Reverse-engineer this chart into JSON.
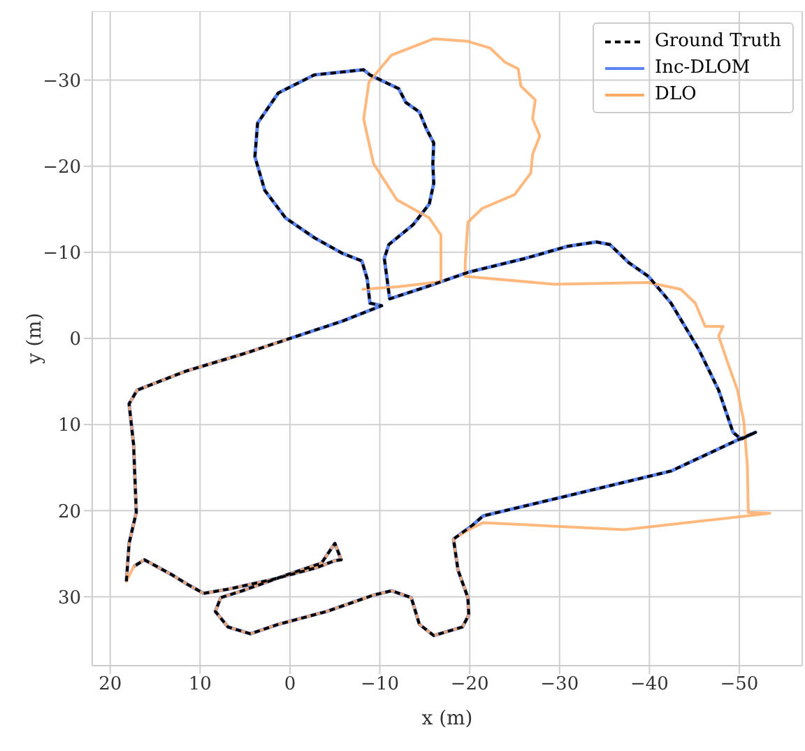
{
  "chart_data": {
    "type": "line",
    "xlabel": "x (m)",
    "ylabel": "y (m)",
    "xlim": [
      22,
      -57
    ],
    "ylim": [
      38,
      -38
    ],
    "xticks": [
      20,
      10,
      0,
      -10,
      -20,
      -30,
      -40,
      -50
    ],
    "yticks": [
      30,
      20,
      10,
      0,
      -10,
      -20,
      -30
    ],
    "grid": true,
    "legend": "top right",
    "marker": "none",
    "series": [
      {
        "name": "Ground Truth",
        "color": "#000000",
        "line_style": "dashed",
        "x": [
          18.2,
          17.9,
          17.1,
          17.4,
          17.9,
          17.0,
          11.6,
          4.9,
          0,
          -5.8,
          -10.2,
          -8.9,
          -8.6,
          -8.0,
          -5.8,
          -2.7,
          0.5,
          2.8,
          3.9,
          3.6,
          1.3,
          -2.7,
          -8.2,
          -8.9,
          -10.5,
          -12.1,
          -12.9,
          -14.4,
          -15.2,
          -16.0,
          -15.9,
          -16.0,
          -15.5,
          -13.7,
          -11.0,
          -10.5,
          -11.1,
          -15.2,
          -19.9,
          -26.2,
          -30.9,
          -34.1,
          -35.6,
          -37.7,
          -39.9,
          -42.4,
          -45.5,
          -47.7,
          -49.3,
          -50.2,
          -51.8,
          -49.8,
          -42.4,
          -32.0,
          -21.5,
          -20.3,
          -18.2,
          -18.7,
          -19.8,
          -19.9,
          -19.2,
          -16.0,
          -14.4,
          -13.5,
          -11.3,
          -9.3,
          -4.1,
          1.3,
          4.4,
          6.9,
          8.3,
          7.7,
          5.3,
          0.2,
          -3.5,
          -5.0,
          -5.7,
          -5.0,
          -3.0,
          2.0,
          6.8,
          9.6,
          11.5,
          13.2,
          16.2,
          17.4
        ],
        "values": [
          28.2,
          23.8,
          20.2,
          12.3,
          7.6,
          6.0,
          3.8,
          1.7,
          0,
          -2.0,
          -3.8,
          -4.1,
          -6.9,
          -9.0,
          -9.9,
          -11.7,
          -14.0,
          -17.2,
          -21.1,
          -25.0,
          -28.5,
          -30.6,
          -31.2,
          -30.6,
          -29.8,
          -29.0,
          -27.4,
          -26.3,
          -24.3,
          -22.7,
          -20.3,
          -18.0,
          -15.6,
          -13.2,
          -10.9,
          -9.3,
          -4.6,
          -6.0,
          -7.7,
          -9.3,
          -10.7,
          -11.2,
          -10.9,
          -8.8,
          -7.2,
          -4.1,
          1.3,
          6.0,
          10.9,
          11.7,
          10.9,
          11.8,
          15.4,
          18.0,
          20.6,
          21.7,
          23.3,
          26.9,
          30.1,
          32.1,
          33.5,
          34.5,
          33.2,
          30.1,
          29.3,
          29.8,
          31.7,
          33.2,
          34.3,
          33.5,
          31.7,
          30.1,
          29.3,
          27.4,
          26.1,
          23.8,
          25.7,
          25.8,
          26.6,
          28.0,
          29.1,
          29.6,
          28.5,
          27.4,
          25.7,
          26.5
        ]
      },
      {
        "name": "Inc-DLOM",
        "color": "#5b84f0",
        "line_style": "solid",
        "x": [
          18.2,
          17.9,
          17.1,
          17.4,
          17.9,
          17.0,
          11.6,
          4.9,
          0,
          -5.8,
          -10.2,
          -8.9,
          -8.6,
          -8.0,
          -5.8,
          -2.7,
          0.5,
          2.8,
          3.9,
          3.6,
          1.3,
          -2.7,
          -8.2,
          -8.9,
          -10.5,
          -12.1,
          -12.9,
          -14.4,
          -15.2,
          -16.0,
          -15.9,
          -16.0,
          -15.5,
          -13.7,
          -11.0,
          -10.5,
          -11.1,
          -15.2,
          -19.9,
          -26.2,
          -30.9,
          -34.1,
          -35.6,
          -37.7,
          -39.9,
          -42.4,
          -45.5,
          -47.7,
          -49.3,
          -50.2,
          -51.8,
          -49.8,
          -42.4,
          -32.0,
          -21.5,
          -20.3,
          -18.2,
          -18.7,
          -19.8,
          -19.9,
          -19.2,
          -16.0,
          -14.4,
          -13.5,
          -11.3,
          -9.3,
          -4.1,
          1.3,
          4.4,
          6.9,
          8.3,
          7.7,
          5.3,
          0.2,
          -3.5,
          -5.0,
          -5.7,
          -5.0,
          -3.0,
          2.0,
          6.8,
          9.6,
          11.5,
          13.2,
          16.2,
          17.4
        ],
        "values": [
          28.2,
          23.8,
          20.2,
          12.3,
          7.6,
          6.0,
          3.8,
          1.7,
          0,
          -2.0,
          -3.8,
          -4.1,
          -6.9,
          -9.0,
          -9.9,
          -11.7,
          -14.0,
          -17.2,
          -21.1,
          -25.0,
          -28.5,
          -30.6,
          -31.2,
          -30.6,
          -29.8,
          -29.0,
          -27.4,
          -26.3,
          -24.3,
          -22.7,
          -20.3,
          -18.0,
          -15.6,
          -13.2,
          -10.9,
          -9.3,
          -4.6,
          -6.0,
          -7.7,
          -9.3,
          -10.7,
          -11.2,
          -10.9,
          -8.8,
          -7.2,
          -4.1,
          1.3,
          6.0,
          10.9,
          11.7,
          10.9,
          11.8,
          15.4,
          18.0,
          20.6,
          21.7,
          23.3,
          26.9,
          30.1,
          32.1,
          33.5,
          34.5,
          33.2,
          30.1,
          29.3,
          29.8,
          31.7,
          33.2,
          34.3,
          33.5,
          31.7,
          30.1,
          29.3,
          27.4,
          26.1,
          23.8,
          25.7,
          25.8,
          26.6,
          28.0,
          29.1,
          29.6,
          28.5,
          27.4,
          25.7,
          26.5
        ]
      },
      {
        "name": "DLO",
        "color": "#ffab66",
        "line_style": "solid",
        "x": [
          -8.0,
          -12.1,
          -16.8,
          -16.8,
          -15.5,
          -11.9,
          -9.3,
          -8.2,
          -8.8,
          -11.3,
          -16.0,
          -19.8,
          -22.3,
          -23.9,
          -25.4,
          -25.7,
          -27.3,
          -27.0,
          -27.8,
          -27.0,
          -26.8,
          -25.0,
          -21.4,
          -19.8,
          -19.5,
          -19.5,
          -29.4,
          -39.9,
          -43.5,
          -45.1,
          -46.2,
          -48.2,
          -47.7,
          -48.7,
          -49.8,
          -50.5,
          -50.9,
          -51.0,
          -53.4,
          -50.9,
          -37.2,
          -21.5,
          -19.9,
          -18.2,
          -18.7,
          -19.8,
          -19.9,
          -19.2,
          -16.0,
          -14.4,
          -13.5,
          -11.3,
          -9.3,
          -4.1,
          1.3,
          4.4,
          6.9,
          8.3,
          7.7,
          5.3,
          0.2,
          -3.5,
          -5.0,
          -5.7,
          -5.0,
          -3.0,
          2.0,
          6.8,
          9.6,
          11.5,
          13.2,
          16.2,
          17.4,
          18.2,
          17.9,
          17.1,
          17.4,
          17.9,
          17.0,
          11.6,
          4.9,
          0
        ],
        "values": [
          -5.7,
          -6.0,
          -6.6,
          -12.0,
          -14.0,
          -16.1,
          -20.3,
          -25.5,
          -29.8,
          -32.9,
          -34.8,
          -34.5,
          -33.7,
          -32.1,
          -31.3,
          -29.3,
          -27.7,
          -25.5,
          -23.5,
          -21.4,
          -19.2,
          -16.7,
          -15.1,
          -13.5,
          -8.8,
          -7.2,
          -6.3,
          -6.5,
          -5.7,
          -4.1,
          -1.4,
          -1.4,
          -0.3,
          2.8,
          6.0,
          9.6,
          14.8,
          20.2,
          20.3,
          20.6,
          22.2,
          21.4,
          22.2,
          23.3,
          26.9,
          30.1,
          32.1,
          33.5,
          34.5,
          33.2,
          30.1,
          29.3,
          29.8,
          31.7,
          33.2,
          34.3,
          33.5,
          31.7,
          30.1,
          29.3,
          27.4,
          26.1,
          23.8,
          25.7,
          25.8,
          26.6,
          28.0,
          29.1,
          29.6,
          28.5,
          27.4,
          25.7,
          26.5,
          28.2,
          23.8,
          20.2,
          12.3,
          7.6,
          6.0,
          3.8,
          1.7,
          0
        ]
      }
    ]
  }
}
